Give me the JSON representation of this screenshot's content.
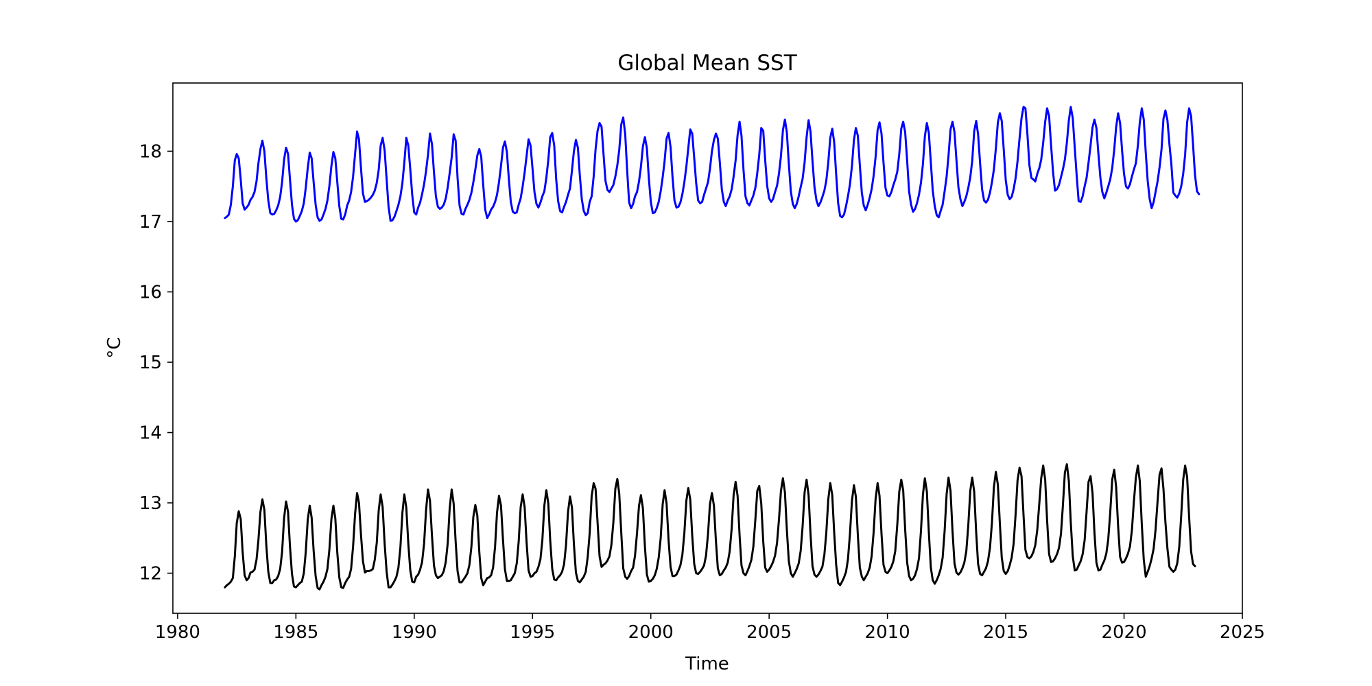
{
  "chart_data": {
    "type": "line",
    "title": "Global Mean SST",
    "xlabel": "Time",
    "ylabel": "°C",
    "xlim": [
      1979.8,
      2025.0
    ],
    "ylim": [
      11.43,
      18.97
    ],
    "xticks": [
      1980,
      1985,
      1990,
      1995,
      2000,
      2005,
      2010,
      2015,
      2020,
      2025
    ],
    "yticks": [
      12,
      13,
      14,
      15,
      16,
      17,
      18
    ],
    "xtick_labels": [
      "1980",
      "1985",
      "1990",
      "1995",
      "2000",
      "2005",
      "2010",
      "2015",
      "2020",
      "2025"
    ],
    "ytick_labels": [
      "12",
      "13",
      "14",
      "15",
      "16",
      "17",
      "18"
    ],
    "grid": false,
    "legend": false,
    "x_start": 1982.0,
    "x_step": 0.0833333,
    "series": [
      {
        "color": "#0000ff",
        "values": [
          17.05,
          17.07,
          17.1,
          17.24,
          17.5,
          17.87,
          17.96,
          17.9,
          17.6,
          17.26,
          17.17,
          17.2,
          17.24,
          17.31,
          17.35,
          17.42,
          17.57,
          17.83,
          18.03,
          18.15,
          18.0,
          17.62,
          17.3,
          17.12,
          17.1,
          17.11,
          17.16,
          17.23,
          17.35,
          17.56,
          17.88,
          18.05,
          17.96,
          17.6,
          17.24,
          17.04,
          17.0,
          17.02,
          17.08,
          17.15,
          17.26,
          17.48,
          17.76,
          17.98,
          17.9,
          17.56,
          17.24,
          17.06,
          17.01,
          17.03,
          17.1,
          17.18,
          17.3,
          17.51,
          17.79,
          17.99,
          17.9,
          17.56,
          17.22,
          17.04,
          17.03,
          17.1,
          17.23,
          17.3,
          17.42,
          17.64,
          17.96,
          18.28,
          18.17,
          17.76,
          17.4,
          17.28,
          17.29,
          17.31,
          17.34,
          17.38,
          17.44,
          17.55,
          17.74,
          18.08,
          18.19,
          18.01,
          17.6,
          17.21,
          17.01,
          17.02,
          17.07,
          17.15,
          17.24,
          17.36,
          17.55,
          17.84,
          18.19,
          18.08,
          17.74,
          17.38,
          17.13,
          17.1,
          17.2,
          17.27,
          17.39,
          17.53,
          17.72,
          17.95,
          18.25,
          18.1,
          17.7,
          17.36,
          17.21,
          17.18,
          17.2,
          17.24,
          17.33,
          17.49,
          17.69,
          17.91,
          18.24,
          18.15,
          17.62,
          17.23,
          17.11,
          17.1,
          17.18,
          17.24,
          17.31,
          17.41,
          17.56,
          17.74,
          17.94,
          18.03,
          17.92,
          17.52,
          17.17,
          17.05,
          17.1,
          17.17,
          17.21,
          17.28,
          17.38,
          17.56,
          17.79,
          18.05,
          18.14,
          17.99,
          17.6,
          17.28,
          17.14,
          17.12,
          17.13,
          17.24,
          17.33,
          17.5,
          17.7,
          17.93,
          18.17,
          18.08,
          17.75,
          17.42,
          17.25,
          17.2,
          17.27,
          17.36,
          17.43,
          17.62,
          17.88,
          18.2,
          18.26,
          18.08,
          17.6,
          17.29,
          17.15,
          17.13,
          17.21,
          17.28,
          17.38,
          17.47,
          17.73,
          18.0,
          18.16,
          18.05,
          17.66,
          17.32,
          17.15,
          17.09,
          17.12,
          17.28,
          17.36,
          17.64,
          18.03,
          18.29,
          18.4,
          18.35,
          17.97,
          17.58,
          17.45,
          17.42,
          17.47,
          17.52,
          17.64,
          17.8,
          18.02,
          18.38,
          18.48,
          18.24,
          17.73,
          17.27,
          17.19,
          17.25,
          17.36,
          17.42,
          17.57,
          17.78,
          18.07,
          18.2,
          18.04,
          17.62,
          17.28,
          17.12,
          17.13,
          17.19,
          17.28,
          17.43,
          17.63,
          17.86,
          18.18,
          18.26,
          18.06,
          17.64,
          17.3,
          17.2,
          17.21,
          17.27,
          17.39,
          17.56,
          17.78,
          18.04,
          18.31,
          18.25,
          17.9,
          17.55,
          17.3,
          17.26,
          17.28,
          17.38,
          17.47,
          17.56,
          17.75,
          18.0,
          18.16,
          18.25,
          18.18,
          17.84,
          17.46,
          17.28,
          17.22,
          17.3,
          17.36,
          17.46,
          17.64,
          17.87,
          18.23,
          18.42,
          18.22,
          17.74,
          17.36,
          17.26,
          17.23,
          17.3,
          17.37,
          17.48,
          17.69,
          17.95,
          18.33,
          18.29,
          17.88,
          17.51,
          17.33,
          17.28,
          17.32,
          17.42,
          17.51,
          17.68,
          17.93,
          18.3,
          18.45,
          18.27,
          17.82,
          17.43,
          17.25,
          17.19,
          17.25,
          17.36,
          17.49,
          17.61,
          17.84,
          18.2,
          18.44,
          18.28,
          17.86,
          17.49,
          17.3,
          17.22,
          17.27,
          17.35,
          17.44,
          17.58,
          17.84,
          18.19,
          18.32,
          18.13,
          17.67,
          17.26,
          17.08,
          17.06,
          17.1,
          17.22,
          17.36,
          17.53,
          17.79,
          18.16,
          18.33,
          18.22,
          17.8,
          17.41,
          17.23,
          17.16,
          17.24,
          17.34,
          17.46,
          17.65,
          17.92,
          18.3,
          18.41,
          18.25,
          17.84,
          17.48,
          17.37,
          17.36,
          17.42,
          17.52,
          17.6,
          17.71,
          17.96,
          18.32,
          18.42,
          18.27,
          17.86,
          17.43,
          17.24,
          17.14,
          17.18,
          17.26,
          17.38,
          17.55,
          17.82,
          18.21,
          18.4,
          18.26,
          17.84,
          17.44,
          17.22,
          17.09,
          17.06,
          17.15,
          17.24,
          17.43,
          17.64,
          17.94,
          18.31,
          18.42,
          18.27,
          17.88,
          17.49,
          17.32,
          17.22,
          17.28,
          17.36,
          17.48,
          17.63,
          17.86,
          18.28,
          18.43,
          18.24,
          17.83,
          17.46,
          17.3,
          17.27,
          17.31,
          17.41,
          17.56,
          17.74,
          18.04,
          18.41,
          18.54,
          18.43,
          18.02,
          17.59,
          17.38,
          17.32,
          17.35,
          17.46,
          17.62,
          17.86,
          18.18,
          18.47,
          18.63,
          18.61,
          18.24,
          17.8,
          17.62,
          17.6,
          17.57,
          17.68,
          17.76,
          17.88,
          18.12,
          18.42,
          18.61,
          18.5,
          18.08,
          17.7,
          17.44,
          17.46,
          17.52,
          17.63,
          17.74,
          17.88,
          18.12,
          18.44,
          18.63,
          18.47,
          18.05,
          17.64,
          17.29,
          17.28,
          17.36,
          17.5,
          17.62,
          17.84,
          18.08,
          18.34,
          18.45,
          18.33,
          17.96,
          17.62,
          17.42,
          17.33,
          17.41,
          17.5,
          17.6,
          17.76,
          18.02,
          18.34,
          18.54,
          18.4,
          18.01,
          17.68,
          17.5,
          17.47,
          17.53,
          17.64,
          17.74,
          17.83,
          18.08,
          18.41,
          18.61,
          18.45,
          17.98,
          17.58,
          17.32,
          17.19,
          17.28,
          17.42,
          17.57,
          17.77,
          18.03,
          18.46,
          18.58,
          18.44,
          18.1,
          17.82,
          17.41,
          17.37,
          17.34,
          17.4,
          17.5,
          17.68,
          17.95,
          18.41,
          18.61,
          18.5,
          18.1,
          17.66,
          17.43,
          17.39
        ]
      },
      {
        "color": "#000000",
        "values": [
          11.8,
          11.83,
          11.85,
          11.88,
          11.93,
          12.24,
          12.71,
          12.88,
          12.77,
          12.3,
          11.97,
          11.9,
          11.93,
          12.01,
          12.02,
          12.05,
          12.19,
          12.47,
          12.87,
          13.05,
          12.9,
          12.4,
          12.02,
          11.86,
          11.86,
          11.9,
          11.91,
          11.96,
          12.06,
          12.3,
          12.78,
          13.02,
          12.87,
          12.38,
          11.99,
          11.81,
          11.8,
          11.83,
          11.86,
          11.88,
          12.0,
          12.3,
          12.76,
          12.96,
          12.79,
          12.32,
          11.96,
          11.79,
          11.77,
          11.83,
          11.88,
          11.95,
          12.06,
          12.34,
          12.77,
          12.96,
          12.78,
          12.29,
          11.94,
          11.8,
          11.79,
          11.86,
          11.91,
          11.95,
          12.06,
          12.38,
          12.84,
          13.14,
          13.0,
          12.55,
          12.17,
          12.01,
          12.03,
          12.03,
          12.04,
          12.06,
          12.19,
          12.43,
          12.9,
          13.12,
          12.94,
          12.42,
          12.02,
          11.8,
          11.8,
          11.84,
          11.89,
          11.95,
          12.08,
          12.37,
          12.86,
          13.12,
          12.93,
          12.42,
          12.04,
          11.88,
          11.87,
          11.95,
          11.98,
          12.05,
          12.16,
          12.42,
          12.9,
          13.19,
          13.03,
          12.53,
          12.11,
          11.97,
          11.93,
          11.95,
          11.97,
          12.03,
          12.16,
          12.43,
          12.92,
          13.19,
          12.99,
          12.45,
          12.03,
          11.87,
          11.87,
          11.91,
          11.95,
          12.0,
          12.12,
          12.38,
          12.8,
          12.97,
          12.82,
          12.3,
          11.93,
          11.83,
          11.88,
          11.93,
          11.94,
          11.97,
          12.08,
          12.38,
          12.86,
          13.1,
          12.96,
          12.48,
          12.06,
          11.89,
          11.89,
          11.9,
          11.95,
          12.0,
          12.14,
          12.45,
          12.94,
          13.12,
          12.94,
          12.44,
          12.04,
          11.95,
          11.96,
          12.0,
          12.02,
          12.09,
          12.2,
          12.47,
          12.96,
          13.18,
          12.99,
          12.46,
          12.06,
          11.91,
          11.9,
          11.94,
          11.97,
          12.02,
          12.13,
          12.4,
          12.87,
          13.09,
          12.93,
          12.41,
          12.01,
          11.89,
          11.87,
          11.91,
          11.95,
          12.02,
          12.23,
          12.57,
          13.1,
          13.28,
          13.2,
          12.72,
          12.24,
          12.09,
          12.12,
          12.14,
          12.18,
          12.24,
          12.4,
          12.72,
          13.2,
          13.34,
          13.13,
          12.58,
          12.07,
          11.95,
          11.92,
          11.96,
          12.03,
          12.08,
          12.25,
          12.57,
          12.96,
          13.11,
          12.92,
          12.38,
          11.98,
          11.88,
          11.89,
          11.92,
          11.97,
          12.06,
          12.22,
          12.5,
          12.98,
          13.18,
          12.99,
          12.47,
          12.09,
          11.96,
          11.96,
          11.98,
          12.04,
          12.11,
          12.26,
          12.57,
          13.03,
          13.21,
          13.05,
          12.53,
          12.13,
          12.0,
          11.99,
          12.02,
          12.06,
          12.11,
          12.25,
          12.56,
          12.98,
          13.14,
          12.96,
          12.46,
          12.07,
          11.97,
          11.99,
          12.04,
          12.08,
          12.15,
          12.31,
          12.64,
          13.11,
          13.3,
          13.1,
          12.54,
          12.11,
          12.0,
          11.97,
          12.03,
          12.1,
          12.19,
          12.38,
          12.76,
          13.17,
          13.24,
          12.99,
          12.45,
          12.08,
          12.02,
          12.05,
          12.1,
          12.16,
          12.25,
          12.43,
          12.76,
          13.17,
          13.35,
          13.15,
          12.62,
          12.17,
          12.0,
          11.95,
          12.0,
          12.06,
          12.14,
          12.32,
          12.67,
          13.15,
          13.33,
          13.11,
          12.56,
          12.1,
          11.98,
          11.95,
          11.98,
          12.03,
          12.09,
          12.26,
          12.57,
          13.05,
          13.28,
          13.11,
          12.58,
          12.12,
          11.86,
          11.83,
          11.88,
          11.94,
          12.02,
          12.2,
          12.56,
          13.03,
          13.25,
          13.09,
          12.54,
          12.08,
          11.95,
          11.9,
          11.95,
          12.0,
          12.08,
          12.24,
          12.58,
          13.06,
          13.28,
          13.1,
          12.56,
          12.12,
          12.02,
          12.0,
          12.04,
          12.09,
          12.17,
          12.32,
          12.69,
          13.16,
          13.33,
          13.18,
          12.62,
          12.15,
          11.96,
          11.9,
          11.92,
          11.97,
          12.06,
          12.21,
          12.6,
          13.12,
          13.35,
          13.16,
          12.58,
          12.08,
          11.9,
          11.85,
          11.9,
          11.97,
          12.06,
          12.22,
          12.6,
          13.12,
          13.36,
          13.17,
          12.6,
          12.14,
          12.01,
          11.98,
          12.01,
          12.07,
          12.15,
          12.31,
          12.68,
          13.17,
          13.36,
          13.16,
          12.58,
          12.13,
          11.99,
          11.97,
          12.02,
          12.07,
          12.17,
          12.36,
          12.72,
          13.22,
          13.44,
          13.26,
          12.71,
          12.22,
          12.03,
          11.99,
          12.03,
          12.11,
          12.22,
          12.42,
          12.84,
          13.32,
          13.5,
          13.38,
          12.83,
          12.33,
          12.23,
          12.21,
          12.24,
          12.3,
          12.4,
          12.62,
          12.99,
          13.35,
          13.53,
          13.33,
          12.75,
          12.27,
          12.16,
          12.17,
          12.21,
          12.27,
          12.36,
          12.56,
          12.96,
          13.43,
          13.55,
          13.31,
          12.72,
          12.24,
          12.04,
          12.05,
          12.11,
          12.17,
          12.27,
          12.47,
          12.87,
          13.3,
          13.38,
          13.14,
          12.58,
          12.15,
          12.04,
          12.05,
          12.12,
          12.18,
          12.28,
          12.48,
          12.86,
          13.33,
          13.47,
          13.23,
          12.67,
          12.23,
          12.15,
          12.16,
          12.21,
          12.28,
          12.38,
          12.61,
          13.02,
          13.36,
          13.53,
          13.31,
          12.7,
          12.19,
          11.95,
          12.02,
          12.1,
          12.21,
          12.35,
          12.62,
          13.02,
          13.4,
          13.49,
          13.2,
          12.72,
          12.35,
          12.09,
          12.05,
          12.02,
          12.05,
          12.14,
          12.37,
          12.82,
          13.33,
          13.53,
          13.37,
          12.8,
          12.31,
          12.13,
          12.1
        ]
      }
    ]
  }
}
